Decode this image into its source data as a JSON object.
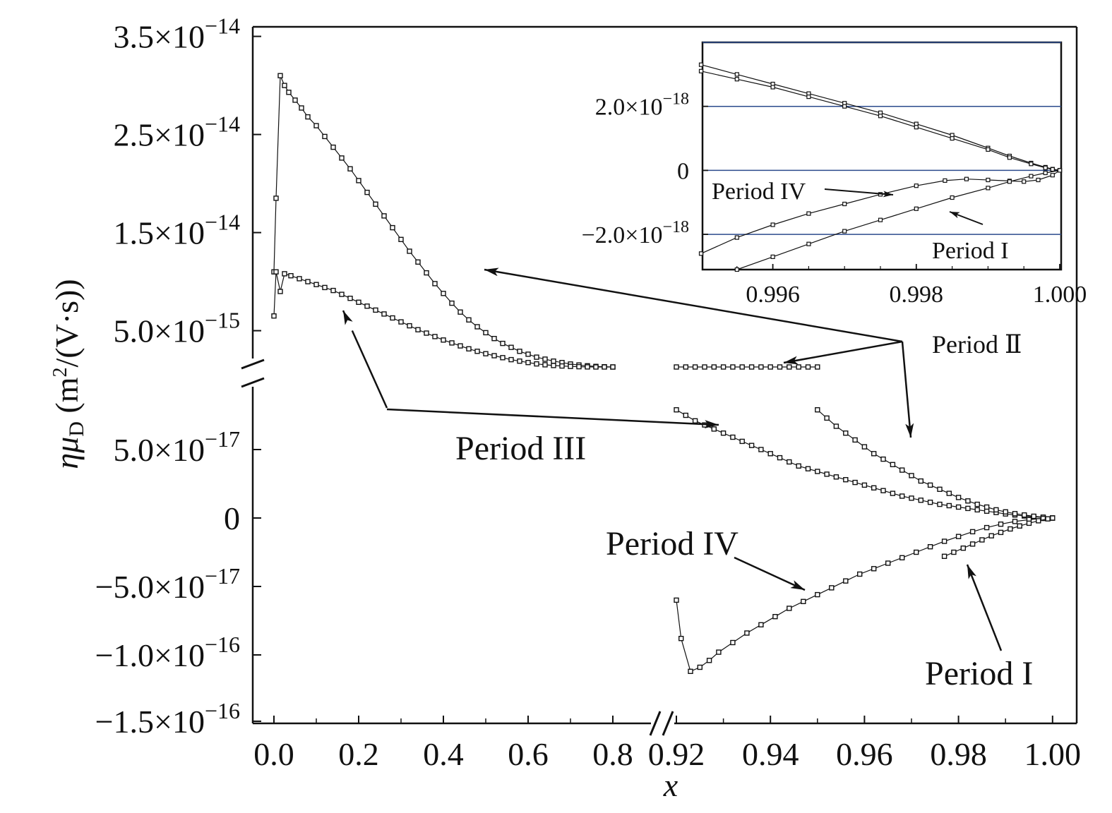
{
  "chart_data": [
    {
      "type": "line",
      "marker": "open-square",
      "xlabel": "x",
      "ylabel": "ημ",
      "ylabel_sub": "D",
      "ylabel_units_pre": " (m",
      "ylabel_units_sup": "2",
      "ylabel_units_post": "/(V·s))",
      "axis_breaks": {
        "x": {
          "between": [
            0.8,
            0.92
          ]
        },
        "y": {
          "between": [
            8e-17,
            4e-15
          ]
        }
      },
      "x_ticks": [
        {
          "v": 0.0,
          "label": "0.0"
        },
        {
          "v": 0.2,
          "label": "0.2"
        },
        {
          "v": 0.4,
          "label": "0.4"
        },
        {
          "v": 0.6,
          "label": "0.6"
        },
        {
          "v": 0.8,
          "label": "0.8"
        },
        {
          "v": 0.92,
          "label": "0.92"
        },
        {
          "v": 0.94,
          "label": "0.94"
        },
        {
          "v": 0.96,
          "label": "0.96"
        },
        {
          "v": 0.98,
          "label": "0.98"
        },
        {
          "v": 1.0,
          "label": "1.00"
        }
      ],
      "y_ticks": [
        {
          "v": -1.5e-16,
          "mant": "−1.5×10",
          "exp": "−16"
        },
        {
          "v": -1e-16,
          "mant": "−1.0×10",
          "exp": "−16"
        },
        {
          "v": -5e-17,
          "mant": "−5.0×10",
          "exp": "−17"
        },
        {
          "v": 0,
          "mant": "0",
          "exp": ""
        },
        {
          "v": 5e-17,
          "mant": "5.0×10",
          "exp": "−17"
        },
        {
          "v": 5e-15,
          "mant": "5.0×10",
          "exp": "−15"
        },
        {
          "v": 1.5e-14,
          "mant": "1.5×10",
          "exp": "−14"
        },
        {
          "v": 2.5e-14,
          "mant": "2.5×10",
          "exp": "−14"
        },
        {
          "v": 3.5e-14,
          "mant": "3.5×10",
          "exp": "−14"
        }
      ],
      "series": [
        {
          "x": [
            0.0,
            0.005,
            0.015,
            0.025,
            0.035,
            0.05,
            0.065,
            0.08,
            0.1,
            0.12,
            0.14,
            0.16,
            0.18,
            0.2,
            0.22,
            0.24,
            0.26,
            0.28,
            0.3,
            0.32,
            0.34,
            0.36,
            0.38,
            0.4,
            0.42,
            0.44,
            0.46,
            0.48,
            0.5,
            0.52,
            0.54,
            0.56,
            0.58,
            0.6,
            0.62,
            0.64,
            0.66,
            0.68,
            0.7,
            0.72,
            0.74,
            0.76,
            0.78,
            0.8
          ],
          "y": [
            1.1e-14,
            1.85e-14,
            3.1e-14,
            3e-14,
            2.93e-14,
            2.85e-14,
            2.77e-14,
            2.68e-14,
            2.59e-14,
            2.48e-14,
            2.37e-14,
            2.26e-14,
            2.15e-14,
            2.03e-14,
            1.91e-14,
            1.79e-14,
            1.67e-14,
            1.55e-14,
            1.43e-14,
            1.31e-14,
            1.2e-14,
            1.09e-14,
            9.8e-15,
            8.8e-15,
            7.8e-15,
            6.9e-15,
            6.1e-15,
            5.4e-15,
            4.8e-15,
            4.2e-15,
            3.7e-15,
            3.3e-15,
            2.9e-15,
            2.6e-15,
            2.3e-15,
            2.1e-15,
            1.9e-15,
            1.75e-15,
            1.6e-15,
            1.5e-15,
            1.42e-15,
            1.36e-15,
            1.32e-15,
            1.3e-15
          ]
        },
        {
          "x": [
            0.0,
            0.005,
            0.015,
            0.025,
            0.04,
            0.06,
            0.08,
            0.1,
            0.12,
            0.14,
            0.16,
            0.18,
            0.2,
            0.22,
            0.24,
            0.26,
            0.28,
            0.3,
            0.32,
            0.34,
            0.36,
            0.38,
            0.4,
            0.42,
            0.44,
            0.46,
            0.48,
            0.5,
            0.52,
            0.54,
            0.56,
            0.58,
            0.6,
            0.62,
            0.64,
            0.66,
            0.68,
            0.7,
            0.72,
            0.74,
            0.76,
            0.78,
            0.8
          ],
          "y": [
            6.5e-15,
            1.1e-14,
            9e-15,
            1.08e-14,
            1.06e-14,
            1.03e-14,
            1e-14,
            9.7e-15,
            9.4e-15,
            9.1e-15,
            8.7e-15,
            8.3e-15,
            7.9e-15,
            7.5e-15,
            7.1e-15,
            6.7e-15,
            6.3e-15,
            5.9e-15,
            5.5e-15,
            5.1e-15,
            4.75e-15,
            4.4e-15,
            4.05e-15,
            3.75e-15,
            3.45e-15,
            3.15e-15,
            2.9e-15,
            2.65e-15,
            2.45e-15,
            2.25e-15,
            2.05e-15,
            1.9e-15,
            1.75e-15,
            1.62e-15,
            1.52e-15,
            1.45e-15,
            1.4e-15,
            1.36e-15,
            1.33e-15,
            1.31e-15,
            1.3e-15,
            1.3e-15,
            1.3e-15
          ]
        },
        {
          "x": [
            0.92,
            0.922,
            0.924,
            0.926,
            0.928,
            0.93,
            0.932,
            0.934,
            0.936,
            0.938,
            0.94,
            0.942,
            0.944,
            0.946,
            0.948,
            0.95
          ],
          "y": [
            1.3e-15,
            1.3e-15,
            1.3e-15,
            1.3e-15,
            1.3e-15,
            1.3e-15,
            1.3e-15,
            1.3e-15,
            1.3e-15,
            1.3e-15,
            1.3e-15,
            1.3e-15,
            1.3e-15,
            1.3e-15,
            1.3e-15,
            1.3e-15
          ]
        },
        {
          "x": [
            0.92,
            0.922,
            0.924,
            0.926,
            0.928,
            0.93,
            0.932,
            0.934,
            0.936,
            0.938,
            0.94,
            0.942,
            0.944,
            0.946,
            0.948,
            0.95,
            0.952,
            0.954,
            0.956,
            0.958,
            0.96,
            0.962,
            0.964,
            0.966,
            0.968,
            0.97,
            0.972,
            0.974,
            0.976,
            0.978,
            0.98,
            0.982,
            0.984,
            0.986,
            0.988,
            0.99,
            0.992,
            0.994,
            0.996,
            0.998,
            1.0
          ],
          "y": [
            7.9e-17,
            7.5e-17,
            7.1e-17,
            6.8e-17,
            6.5e-17,
            6.2e-17,
            5.9e-17,
            5.6e-17,
            5.3e-17,
            5e-17,
            4.7e-17,
            4.4e-17,
            4.1e-17,
            3.8e-17,
            3.6e-17,
            3.4e-17,
            3.2e-17,
            3e-17,
            2.8e-17,
            2.6e-17,
            2.4e-17,
            2.2e-17,
            2e-17,
            1.8e-17,
            1.6e-17,
            1.45e-17,
            1.3e-17,
            1.15e-17,
            1e-17,
            9e-18,
            8e-18,
            7e-18,
            6e-18,
            5e-18,
            4e-18,
            3e-18,
            2.2e-18,
            1.5e-18,
            9e-19,
            4e-19,
            0
          ]
        },
        {
          "x": [
            0.95,
            0.952,
            0.954,
            0.956,
            0.958,
            0.96,
            0.962,
            0.964,
            0.966,
            0.968,
            0.97,
            0.972,
            0.974,
            0.976,
            0.978,
            0.98,
            0.982,
            0.984,
            0.986,
            0.988,
            0.99,
            0.992,
            0.994,
            0.996,
            0.998,
            1.0
          ],
          "y": [
            7.9e-17,
            7.3e-17,
            6.7e-17,
            6.2e-17,
            5.7e-17,
            5.2e-17,
            4.7e-17,
            4.3e-17,
            3.9e-17,
            3.5e-17,
            3.1e-17,
            2.7e-17,
            2.4e-17,
            2.1e-17,
            1.8e-17,
            1.5e-17,
            1.25e-17,
            1e-17,
            8e-18,
            6e-18,
            4.5e-18,
            3.2e-18,
            2.2e-18,
            1.3e-18,
            6e-19,
            0
          ]
        },
        {
          "x": [
            0.92,
            0.921,
            0.923,
            0.925,
            0.927,
            0.929,
            0.932,
            0.935,
            0.938,
            0.941,
            0.944,
            0.947,
            0.95,
            0.953,
            0.956,
            0.959,
            0.962,
            0.965,
            0.968,
            0.971,
            0.974,
            0.977,
            0.98,
            0.983,
            0.986,
            0.989,
            0.992,
            0.995,
            0.998,
            1.0
          ],
          "y": [
            -6e-17,
            -8.8e-17,
            -1.12e-16,
            -1.09e-16,
            -1.04e-16,
            -9.8e-17,
            -9.1e-17,
            -8.4e-17,
            -7.8e-17,
            -7.2e-17,
            -6.6e-17,
            -6.1e-17,
            -5.6e-17,
            -5.1e-17,
            -4.6e-17,
            -4.1e-17,
            -3.7e-17,
            -3.3e-17,
            -2.9e-17,
            -2.5e-17,
            -2.1e-17,
            -1.7e-17,
            -1.35e-17,
            -1e-17,
            -7e-18,
            -4.5e-18,
            -2.5e-18,
            -1.2e-18,
            -3e-19,
            0
          ]
        },
        {
          "x": [
            0.977,
            0.979,
            0.981,
            0.983,
            0.985,
            0.987,
            0.989,
            0.991,
            0.993,
            0.995,
            0.997,
            0.999,
            1.0
          ],
          "y": [
            -2.8e-17,
            -2.5e-17,
            -2.2e-17,
            -1.9e-17,
            -1.6e-17,
            -1.3e-17,
            -1.05e-17,
            -8e-18,
            -5.8e-18,
            -3.8e-18,
            -2e-18,
            -6e-19,
            0
          ]
        }
      ],
      "annotations": [
        {
          "label": "Period III"
        },
        {
          "label": "Period IV"
        },
        {
          "label": "Period I"
        },
        {
          "label": "Period Ⅱ"
        }
      ]
    },
    {
      "type": "line",
      "marker": "open-square",
      "role": "inset",
      "xlim": [
        0.995,
        1.0
      ],
      "ylim": [
        -3.1e-18,
        4e-18
      ],
      "grid": "horizontal",
      "x_ticks": [
        {
          "v": 0.996,
          "label": "0.996"
        },
        {
          "v": 0.998,
          "label": "0.998"
        },
        {
          "v": 1.0,
          "label": "1.000"
        }
      ],
      "y_ticks": [
        {
          "v": -2e-18,
          "mant": "−2.0×10",
          "exp": "−18"
        },
        {
          "v": 0,
          "mant": "0",
          "exp": ""
        },
        {
          "v": 2e-18,
          "mant": "2.0×10",
          "exp": "−18"
        }
      ],
      "grid_lines": [
        -2e-18,
        0,
        2e-18,
        4e-18
      ],
      "series": [
        {
          "x": [
            0.995,
            0.9955,
            0.996,
            0.9965,
            0.997,
            0.9975,
            0.998,
            0.9985,
            0.999,
            0.9993,
            0.9996,
            0.9998,
            0.9999,
            1.0
          ],
          "y": [
            3.3e-18,
            3e-18,
            2.7e-18,
            2.4e-18,
            2.1e-18,
            1.8e-18,
            1.45e-18,
            1.1e-18,
            7e-19,
            4.5e-19,
            2.3e-19,
            1e-19,
            4e-20,
            0
          ]
        },
        {
          "x": [
            0.995,
            0.9955,
            0.996,
            0.9965,
            0.997,
            0.9975,
            0.998,
            0.9985,
            0.999,
            0.9993,
            0.9996,
            0.9998,
            0.9999,
            1.0
          ],
          "y": [
            3.1e-18,
            2.85e-18,
            2.6e-18,
            2.3e-18,
            2e-18,
            1.7e-18,
            1.35e-18,
            1e-18,
            6.5e-19,
            4e-19,
            2e-19,
            8e-20,
            3e-20,
            0
          ]
        },
        {
          "x": [
            0.995,
            0.9955,
            0.996,
            0.9965,
            0.997,
            0.9975,
            0.998,
            0.9984,
            0.9987,
            0.999,
            0.9993,
            0.9995,
            0.9997,
            0.9999,
            1.0
          ],
          "y": [
            -2.6e-18,
            -2.1e-18,
            -1.7e-18,
            -1.35e-18,
            -1.05e-18,
            -7.5e-19,
            -4.8e-19,
            -3.2e-19,
            -2.7e-19,
            -3e-19,
            -3.3e-19,
            -3.5e-19,
            -3e-19,
            -1.5e-19,
            0
          ]
        },
        {
          "x": [
            0.9955,
            0.996,
            0.9965,
            0.997,
            0.9975,
            0.998,
            0.9985,
            0.999,
            0.9993,
            0.9996,
            0.9998,
            1.0
          ],
          "y": [
            -3.1e-18,
            -2.7e-18,
            -2.3e-18,
            -1.9e-18,
            -1.55e-18,
            -1.2e-18,
            -8.5e-19,
            -5.5e-19,
            -3.5e-19,
            -1.8e-19,
            -8e-20,
            0
          ]
        }
      ],
      "annotations": [
        {
          "label": "Period IV"
        },
        {
          "label": "Period I"
        }
      ]
    }
  ]
}
